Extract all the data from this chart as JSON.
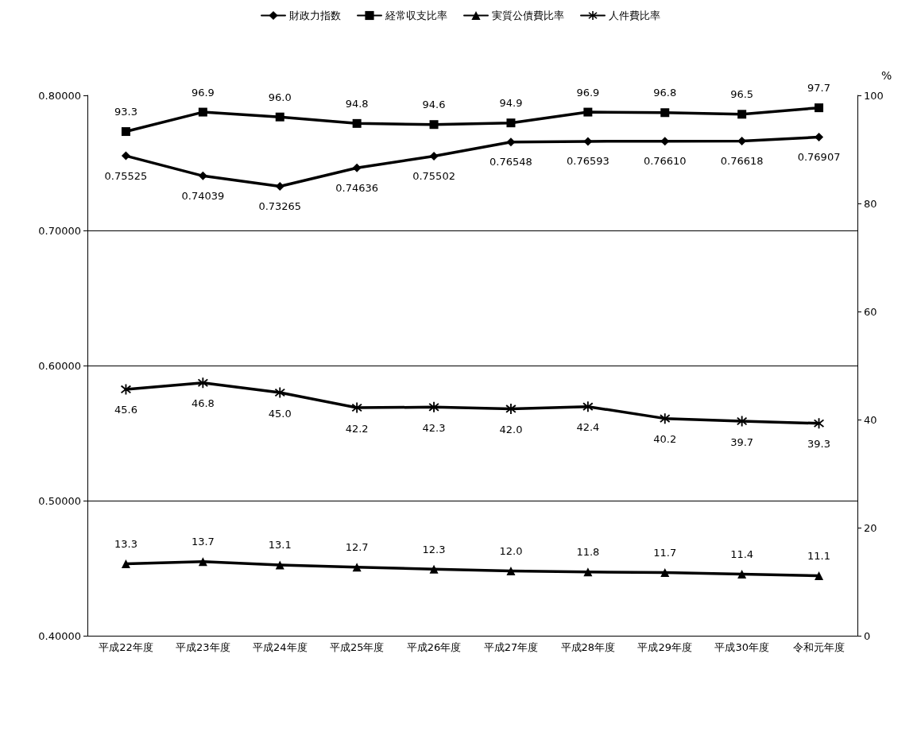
{
  "chart_data": {
    "type": "line",
    "categories": [
      "平成22年度",
      "平成23年度",
      "平成24年度",
      "平成25年度",
      "平成26年度",
      "平成27年度",
      "平成28年度",
      "平成29年度",
      "平成30年度",
      "令和元年度"
    ],
    "series": [
      {
        "name": "財政力指数",
        "color": "#000000",
        "marker": "diamond",
        "values": [
          0.75525,
          0.74039,
          0.73265,
          0.74636,
          0.75502,
          0.76548,
          0.76593,
          0.7661,
          0.76618,
          0.76907
        ],
        "value_labels": [
          "0.75525",
          "0.74039",
          "0.73265",
          "0.74636",
          "0.75502",
          "0.76548",
          "0.76593",
          "0.76610",
          "0.76618",
          "0.76907"
        ]
      },
      {
        "name": "経常収支比率",
        "color": "#000000",
        "marker": "square",
        "axis": "y2",
        "values": [
          93.3,
          96.9,
          96.0,
          94.8,
          94.6,
          94.9,
          96.9,
          96.8,
          96.5,
          97.7
        ],
        "value_labels": [
          "93.3",
          "96.9",
          "96.0",
          "94.8",
          "94.6",
          "94.9",
          "96.9",
          "96.8",
          "96.5",
          "97.7"
        ]
      },
      {
        "name": "実質公債費比率",
        "color": "#000000",
        "marker": "triangle",
        "axis": "y2",
        "values": [
          13.3,
          13.7,
          13.1,
          12.7,
          12.3,
          12.0,
          11.8,
          11.7,
          11.4,
          11.1
        ],
        "value_labels": [
          "13.3",
          "13.7",
          "13.1",
          "12.7",
          "12.3",
          "12.0",
          "11.8",
          "11.7",
          "11.4",
          "11.1"
        ]
      },
      {
        "name": "人件費比率",
        "color": "#000000",
        "marker": "star",
        "axis": "y2",
        "values": [
          45.6,
          46.8,
          45.0,
          42.2,
          42.3,
          42.0,
          42.4,
          40.2,
          39.7,
          39.3
        ],
        "value_labels": [
          "45.6",
          "46.8",
          "45.0",
          "42.2",
          "42.3",
          "42.0",
          "42.4",
          "40.2",
          "39.7",
          "39.3"
        ]
      }
    ],
    "ylim": [
      0.4,
      0.8
    ],
    "yticks": [
      {
        "value": 0.4,
        "label": "0.40000"
      },
      {
        "value": 0.5,
        "label": "0.50000"
      },
      {
        "value": 0.6,
        "label": "0.60000"
      },
      {
        "value": 0.7,
        "label": "0.70000"
      },
      {
        "value": 0.8,
        "label": "0.80000"
      }
    ],
    "y2lim": [
      0,
      100
    ],
    "y2ticks": [
      0,
      20,
      40,
      60,
      80,
      100
    ],
    "y2label": "%",
    "grid": "y",
    "legend": "top",
    "line_style": "solid"
  }
}
